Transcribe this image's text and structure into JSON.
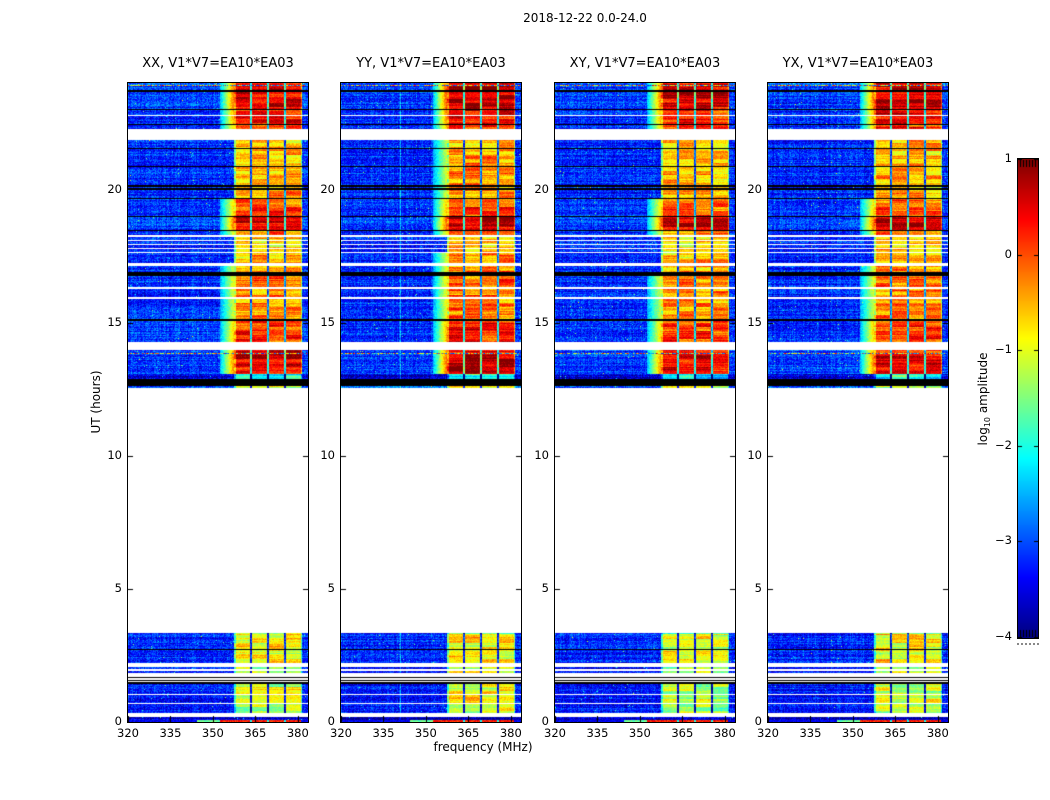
{
  "figure": {
    "title": "2018-12-22 0.0-24.0",
    "background_color": "#ffffff"
  },
  "chart_data": {
    "type": "heatmap",
    "title": "2018-12-22 0.0-24.0",
    "xlabel": "frequency (MHz)",
    "ylabel": "UT (hours)",
    "x_ticks": [
      320,
      335,
      350,
      365,
      380
    ],
    "y_ticks": [
      0,
      5,
      10,
      15,
      20
    ],
    "x_range_mhz": [
      320,
      383.6
    ],
    "y_range_hours": [
      0,
      24
    ],
    "grid": false,
    "colormap": "jet",
    "colorbar": {
      "label_prefix": "log",
      "label_sub": "10",
      "label_suffix": " amplitude",
      "tick_labels": [
        "1",
        "0",
        "−1",
        "−2",
        "−3",
        "−4"
      ],
      "tick_values": [
        1,
        0,
        -1,
        -2,
        -3,
        -4
      ],
      "range": [
        -4,
        1
      ]
    },
    "panels": [
      {
        "title": "XX, V1*V7=EA10*EA03",
        "pol": "XX",
        "baseline": "V1*V7=EA10*EA03",
        "seed": 11,
        "amp": 0
      },
      {
        "title": "YY, V1*V7=EA10*EA03",
        "pol": "YY",
        "baseline": "V1*V7=EA10*EA03",
        "seed": 22,
        "amp": 0.15,
        "vline_mhz": 341
      },
      {
        "title": "XY, V1*V7=EA10*EA03",
        "pol": "XY",
        "baseline": "V1*V7=EA10*EA03",
        "seed": 33,
        "amp": -0.08
      },
      {
        "title": "YX, V1*V7=EA10*EA03",
        "pol": "YX",
        "baseline": "V1*V7=EA10*EA03",
        "seed": 44,
        "amp": 0
      }
    ],
    "rfi_band": {
      "f_lo_mhz": 357.5,
      "f_hi_mhz": 381.5,
      "fade_lo_mhz": 352.5,
      "divider_mhz": [
        363.5,
        369.5,
        375.5
      ]
    },
    "background_level_log10": -3.2,
    "time_segments": [
      [
        24.0,
        23.92,
        "d",
        0.3,
        -3.0
      ],
      [
        23.92,
        23.88,
        "s",
        0,
        0
      ],
      [
        23.88,
        23.72,
        "d",
        0.55,
        -3.1
      ],
      [
        23.72,
        23.66,
        "k",
        0,
        0
      ],
      [
        23.66,
        23.02,
        "d",
        0.6,
        -3.1
      ],
      [
        23.02,
        22.97,
        "k",
        0,
        0
      ],
      [
        22.97,
        22.8,
        "d",
        0.35,
        -3.2
      ],
      [
        22.8,
        22.76,
        "w",
        0,
        0
      ],
      [
        22.76,
        22.46,
        "d",
        0.3,
        -3.2
      ],
      [
        22.46,
        22.42,
        "k",
        0,
        0
      ],
      [
        22.42,
        22.26,
        "d",
        0.1,
        -3.2
      ],
      [
        22.26,
        21.86,
        "w",
        0,
        0
      ],
      [
        21.86,
        21.56,
        "d",
        -0.6,
        -3.2
      ],
      [
        21.56,
        21.52,
        "k",
        0,
        0
      ],
      [
        21.52,
        20.88,
        "d",
        -0.55,
        -3.2
      ],
      [
        20.88,
        20.84,
        "k",
        0,
        0
      ],
      [
        20.84,
        20.16,
        "d",
        -0.5,
        -3.15
      ],
      [
        20.16,
        20.1,
        "k",
        0,
        0
      ],
      [
        20.1,
        20.04,
        "d",
        -0.6,
        -3.2
      ],
      [
        20.04,
        19.98,
        "k",
        0,
        0
      ],
      [
        19.98,
        19.68,
        "d",
        -0.45,
        -3.2
      ],
      [
        19.68,
        19.63,
        "k",
        0,
        0
      ],
      [
        19.63,
        19.02,
        "d",
        0.0,
        -3.15
      ],
      [
        19.02,
        18.97,
        "k",
        0,
        0
      ],
      [
        18.97,
        18.48,
        "d",
        0.55,
        -3.1
      ],
      [
        18.48,
        18.44,
        "k",
        0,
        0
      ],
      [
        18.44,
        18.28,
        "d",
        -0.3,
        -3.2
      ],
      [
        18.28,
        18.22,
        "w",
        0,
        0
      ],
      [
        18.22,
        18.12,
        "d",
        -0.7,
        -3.2
      ],
      [
        18.12,
        18.07,
        "w",
        0,
        0
      ],
      [
        18.07,
        17.97,
        "d",
        -0.7,
        -3.2
      ],
      [
        17.97,
        17.92,
        "w",
        0,
        0
      ],
      [
        17.92,
        17.82,
        "d",
        -0.7,
        -3.2
      ],
      [
        17.82,
        17.77,
        "w",
        0,
        0
      ],
      [
        17.77,
        17.67,
        "d",
        -0.7,
        -3.2
      ],
      [
        17.67,
        17.62,
        "w",
        0,
        0
      ],
      [
        17.62,
        17.24,
        "d",
        -0.5,
        -3.2
      ],
      [
        17.24,
        17.13,
        "w",
        0,
        0
      ],
      [
        17.13,
        16.92,
        "d",
        -0.4,
        -3.2
      ],
      [
        16.92,
        16.76,
        "k",
        0,
        0
      ],
      [
        16.76,
        16.33,
        "d",
        -0.2,
        -3.15
      ],
      [
        16.33,
        16.25,
        "w",
        0,
        0
      ],
      [
        16.25,
        15.97,
        "d",
        -0.3,
        -3.2
      ],
      [
        15.97,
        15.89,
        "w",
        0,
        0
      ],
      [
        15.89,
        15.12,
        "d",
        -0.35,
        -3.2
      ],
      [
        15.12,
        15.05,
        "k",
        0,
        0
      ],
      [
        15.05,
        14.27,
        "d",
        0.1,
        -3.15
      ],
      [
        14.27,
        13.97,
        "w",
        0,
        0
      ],
      [
        13.97,
        13.86,
        "d",
        0.3,
        -3.1
      ],
      [
        13.86,
        13.81,
        "s",
        0,
        0
      ],
      [
        13.81,
        13.06,
        "d",
        0.5,
        -3.1
      ],
      [
        13.06,
        12.87,
        "d",
        -2.0,
        -3.6
      ],
      [
        12.87,
        12.62,
        "k",
        0,
        0
      ],
      [
        12.62,
        12.55,
        "d",
        -1.2,
        -2.9
      ],
      [
        12.55,
        3.36,
        "w",
        0,
        0
      ],
      [
        3.36,
        3.3,
        "d",
        -1.5,
        -3.3
      ],
      [
        3.3,
        2.74,
        "d",
        -0.9,
        -3.2
      ],
      [
        2.74,
        2.69,
        "k",
        0,
        0
      ],
      [
        2.69,
        2.21,
        "d",
        -0.9,
        -3.2
      ],
      [
        2.21,
        2.06,
        "w",
        0,
        0
      ],
      [
        2.06,
        1.99,
        "d",
        -1.2,
        -3.3
      ],
      [
        1.99,
        1.91,
        "w",
        0,
        0
      ],
      [
        1.91,
        1.85,
        "d",
        -1.2,
        -3.3
      ],
      [
        1.85,
        1.69,
        "w",
        0,
        0
      ],
      [
        1.69,
        1.64,
        "k",
        0,
        0
      ],
      [
        1.64,
        1.59,
        "w",
        0,
        0
      ],
      [
        1.59,
        1.54,
        "k",
        0,
        0
      ],
      [
        1.54,
        1.49,
        "w",
        0,
        0
      ],
      [
        1.49,
        1.44,
        "k",
        0,
        0
      ],
      [
        1.44,
        1.32,
        "d",
        -1.3,
        -3.3
      ],
      [
        1.32,
        1.06,
        "d",
        -1.1,
        -3.3
      ],
      [
        1.06,
        1.0,
        "w",
        0,
        0
      ],
      [
        1.0,
        0.73,
        "d",
        -1.1,
        -3.3
      ],
      [
        0.73,
        0.68,
        "w",
        0,
        0
      ],
      [
        0.68,
        0.35,
        "d",
        -1.2,
        -3.3
      ],
      [
        0.35,
        0.2,
        "w",
        0,
        0
      ],
      [
        0.2,
        0.07,
        "d",
        null,
        -3.7
      ],
      [
        0.07,
        0.0,
        "z",
        0,
        0
      ]
    ],
    "bottom_row_bands": {
      "red_mhz": [
        352.5,
        381.0
      ],
      "red_level": 0.25,
      "green_mhz": [
        344.5,
        352.5
      ],
      "green_level": -1.6
    }
  }
}
